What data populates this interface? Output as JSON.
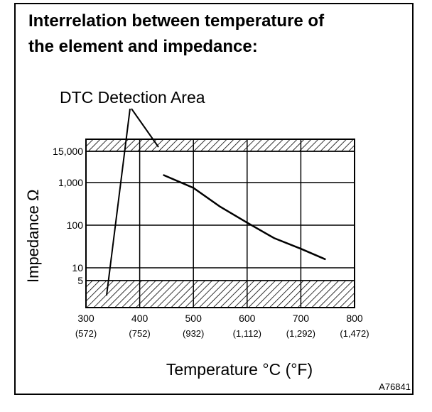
{
  "title_line1": "Interrelation between temperature of",
  "title_line2": "the element and impedance:",
  "figure_id": "A76841",
  "chart_data": {
    "type": "line",
    "ylabel": "Impedance Ω",
    "xlabel": "Temperature °C (°F)",
    "annotation": "DTC Detection Area",
    "x_ticks_c": [
      "300",
      "400",
      "500",
      "600",
      "700",
      "800"
    ],
    "x_ticks_f": [
      "(572)",
      "(752)",
      "(932)",
      "(1,112)",
      "(1,292)",
      "(1,472)"
    ],
    "y_ticks": [
      "15,000",
      "1,000",
      "100",
      "10",
      "5"
    ],
    "y_tick_values": [
      15000,
      1000,
      100,
      10,
      5
    ],
    "xlim": [
      300,
      800
    ],
    "y_scale": "log",
    "grid": true,
    "detection_areas": [
      {
        "y_from": 15000,
        "y_to": "above"
      },
      {
        "y_from": "below",
        "y_to": 5
      }
    ],
    "series": [
      {
        "x": [
          445,
          500,
          550,
          600,
          650,
          700,
          745
        ],
        "y": [
          1900,
          750,
          270,
          115,
          50,
          28,
          16
        ]
      }
    ],
    "colors": {
      "line": "#000000",
      "background": "#ffffff"
    }
  }
}
